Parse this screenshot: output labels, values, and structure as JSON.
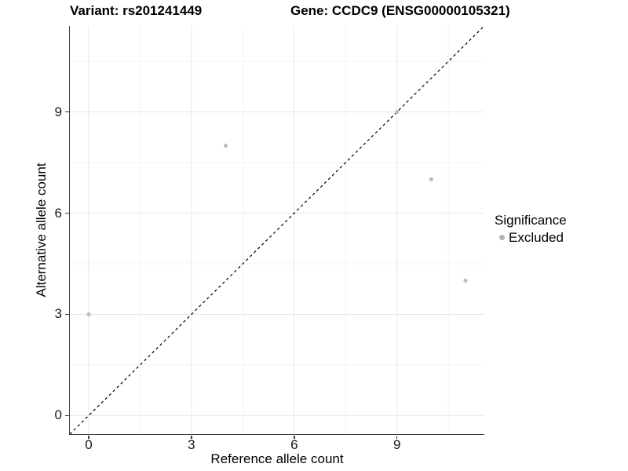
{
  "chart_data": {
    "type": "scatter",
    "title_left": "Variant: rs201241449",
    "title_right": "Gene: CCDC9 (ENSG00000105321)",
    "xlabel": "Reference allele count",
    "ylabel": "Alternative allele count",
    "xlim": [
      -0.55,
      11.55
    ],
    "ylim": [
      -0.55,
      11.55
    ],
    "major_ticks": [
      0,
      3,
      6,
      9
    ],
    "minor_gridlines": [
      1.5,
      4.5,
      7.5,
      10.5
    ],
    "grid": "major and minor, light gray on white",
    "identity_line": {
      "equation": "y = x",
      "style": "dashed",
      "color": "#000000"
    },
    "series": [
      {
        "name": "Excluded",
        "color": "#bdbdbd",
        "points": [
          [
            0,
            3
          ],
          [
            4,
            8
          ],
          [
            9,
            9
          ],
          [
            10,
            7
          ],
          [
            11,
            4
          ]
        ]
      }
    ],
    "legend": {
      "title": "Significance",
      "position": "right",
      "items": [
        {
          "label": "Excluded",
          "color": "#b3b3b3"
        }
      ]
    },
    "colors": {
      "grid_major": "#e7e7e7",
      "grid_minor": "#f3f3f3",
      "axis_line": "#3f3f3f",
      "point": "#bdbdbd",
      "diagonal": "#000000"
    }
  }
}
